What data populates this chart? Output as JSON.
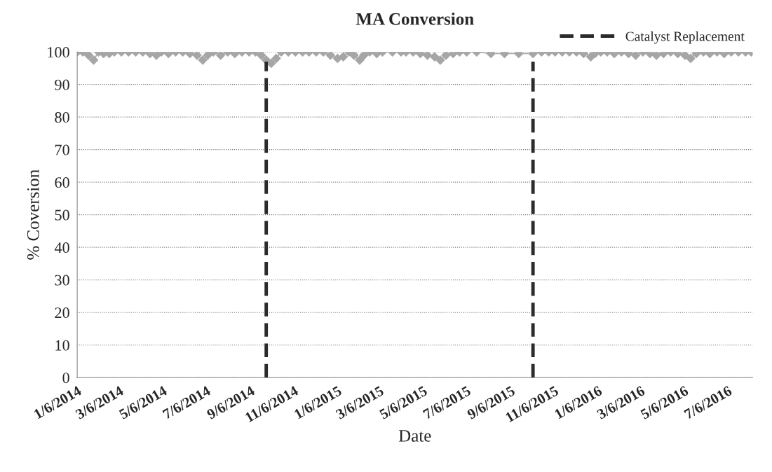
{
  "chart_data": {
    "type": "line",
    "title": "MA Conversion",
    "xlabel": "Date",
    "ylabel": "% Coversion",
    "xlim": [
      "2014-01-06",
      "2016-08-10"
    ],
    "ylim": [
      0,
      100
    ],
    "yticks": [
      0,
      10,
      20,
      30,
      40,
      50,
      60,
      70,
      80,
      90,
      100
    ],
    "xticks": [
      {
        "value": "2014-01-06",
        "label": "1/6/2014"
      },
      {
        "value": "2014-03-06",
        "label": "3/6/2014"
      },
      {
        "value": "2014-05-06",
        "label": "5/6/2014"
      },
      {
        "value": "2014-07-06",
        "label": "7/6/2014"
      },
      {
        "value": "2014-09-06",
        "label": "9/6/2014"
      },
      {
        "value": "2014-11-06",
        "label": "11/6/2014"
      },
      {
        "value": "2015-01-06",
        "label": "1/6/2015"
      },
      {
        "value": "2015-03-06",
        "label": "3/6/2015"
      },
      {
        "value": "2015-05-06",
        "label": "5/6/2015"
      },
      {
        "value": "2015-07-06",
        "label": "7/6/2015"
      },
      {
        "value": "2015-09-06",
        "label": "9/6/2015"
      },
      {
        "value": "2015-11-06",
        "label": "11/6/2015"
      },
      {
        "value": "2016-01-06",
        "label": "1/6/2016"
      },
      {
        "value": "2016-03-06",
        "label": "3/6/2016"
      },
      {
        "value": "2016-05-06",
        "label": "5/6/2016"
      },
      {
        "value": "2016-07-06",
        "label": "7/6/2016"
      }
    ],
    "grid": "y",
    "legend": "top right",
    "series": [
      {
        "color": "#a6a6a6",
        "marker": "diamond",
        "line_style": "solid",
        "x": [
          "2014-01-06",
          "2014-01-14",
          "2014-01-22",
          "2014-01-29",
          "2014-02-05",
          "2014-02-12",
          "2014-02-20",
          "2014-02-27",
          "2014-03-09",
          "2014-03-19",
          "2014-03-29",
          "2014-04-08",
          "2014-04-18",
          "2014-04-27",
          "2014-05-04",
          "2014-05-14",
          "2014-05-24",
          "2014-06-03",
          "2014-06-13",
          "2014-06-23",
          "2014-07-01",
          "2014-07-08",
          "2014-07-16",
          "2014-07-26",
          "2014-08-05",
          "2014-08-15",
          "2014-08-25",
          "2014-09-04",
          "2014-09-13",
          "2014-09-21",
          "2014-09-28",
          "2014-10-05",
          "2014-10-12",
          "2014-10-19",
          "2014-10-29",
          "2014-11-08",
          "2014-11-18",
          "2014-11-27",
          "2014-12-07",
          "2014-12-17",
          "2014-12-27",
          "2015-01-06",
          "2015-01-14",
          "2015-01-22",
          "2015-01-29",
          "2015-02-06",
          "2015-02-12",
          "2015-02-20",
          "2015-03-02",
          "2015-03-10",
          "2015-03-24",
          "2015-04-05",
          "2015-04-12",
          "2015-04-22",
          "2015-05-02",
          "2015-05-12",
          "2015-05-22",
          "2015-05-30",
          "2015-06-07",
          "2015-06-17",
          "2015-06-26",
          "2015-07-06",
          "2015-07-20",
          "2015-08-09",
          "2015-08-28",
          "2015-09-17",
          "2015-10-07",
          "2015-10-19",
          "2015-10-29",
          "2015-11-07",
          "2015-11-17",
          "2015-11-27",
          "2015-12-07",
          "2015-12-17",
          "2015-12-27",
          "2016-01-02",
          "2016-01-10",
          "2016-01-19",
          "2016-01-29",
          "2016-02-08",
          "2016-02-18",
          "2016-02-28",
          "2016-03-09",
          "2016-03-19",
          "2016-03-28",
          "2016-04-07",
          "2016-04-17",
          "2016-04-27",
          "2016-05-07",
          "2016-05-15",
          "2016-05-23",
          "2016-06-02",
          "2016-06-11",
          "2016-06-21",
          "2016-07-01",
          "2016-07-11",
          "2016-07-21",
          "2016-07-31",
          "2016-08-08"
        ],
        "values": [
          100,
          100,
          99,
          97.5,
          100,
          99.5,
          99.5,
          100,
          100,
          100,
          100,
          100,
          99.5,
          99,
          100,
          99.5,
          100,
          100,
          99.5,
          99,
          97.5,
          99,
          100,
          99,
          100,
          99.5,
          100,
          100,
          100,
          99,
          97.5,
          96.5,
          98,
          100,
          100,
          100,
          100,
          100,
          100,
          100,
          99,
          98,
          98.5,
          100,
          99,
          97.5,
          99,
          100,
          99.5,
          100,
          100,
          100,
          100,
          100,
          99.5,
          99,
          98.5,
          97.5,
          99,
          99.5,
          100,
          100,
          100,
          99.5,
          99.5,
          99.5,
          99.5,
          100,
          100,
          100,
          100,
          100,
          100,
          99.5,
          98.5,
          99.5,
          100,
          100,
          99.5,
          100,
          99.5,
          99,
          100,
          99.5,
          99,
          99.5,
          100,
          99.5,
          99,
          98,
          99.5,
          100,
          99.5,
          100,
          99.5,
          100,
          100,
          100,
          100
        ]
      },
      {
        "name": "Catalyst Replacement",
        "color": "#2b2b2b",
        "marker": "none",
        "line_style": "dashed",
        "x": [
          "2014-09-28",
          "2014-09-28"
        ],
        "values": [
          0,
          97
        ]
      },
      {
        "color": "#2b2b2b",
        "marker": "none",
        "line_style": "dashed",
        "x": [
          "2015-10-07",
          "2015-10-07"
        ],
        "values": [
          0,
          97
        ]
      }
    ]
  }
}
